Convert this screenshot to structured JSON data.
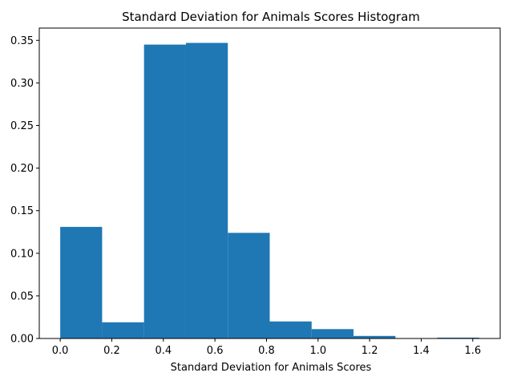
{
  "chart_data": {
    "type": "bar",
    "title": "Standard Deviation for Animals Scores Histogram",
    "xlabel": "Standard Deviation for Animals Scores",
    "ylabel": "",
    "bar_color": "#1f77b4",
    "bin_edges": [
      0.0,
      0.1625,
      0.325,
      0.4875,
      0.65,
      0.8125,
      0.975,
      1.1375,
      1.3,
      1.4625,
      1.625
    ],
    "values": [
      0.131,
      0.019,
      0.345,
      0.347,
      0.124,
      0.02,
      0.011,
      0.003,
      0.0,
      0.001
    ],
    "xlim": [
      -0.08125,
      1.70625
    ],
    "ylim": [
      0,
      0.3644
    ],
    "xticks": [
      0.0,
      0.2,
      0.4,
      0.6,
      0.8,
      1.0,
      1.2,
      1.4,
      1.6
    ],
    "xtick_labels": [
      "0.0",
      "0.2",
      "0.4",
      "0.6",
      "0.8",
      "1.0",
      "1.2",
      "1.4",
      "1.6"
    ],
    "yticks": [
      0.0,
      0.05,
      0.1,
      0.15,
      0.2,
      0.25,
      0.3,
      0.35
    ],
    "ytick_labels": [
      "0.00",
      "0.05",
      "0.10",
      "0.15",
      "0.20",
      "0.25",
      "0.30",
      "0.35"
    ],
    "grid": false,
    "legend": "none"
  }
}
